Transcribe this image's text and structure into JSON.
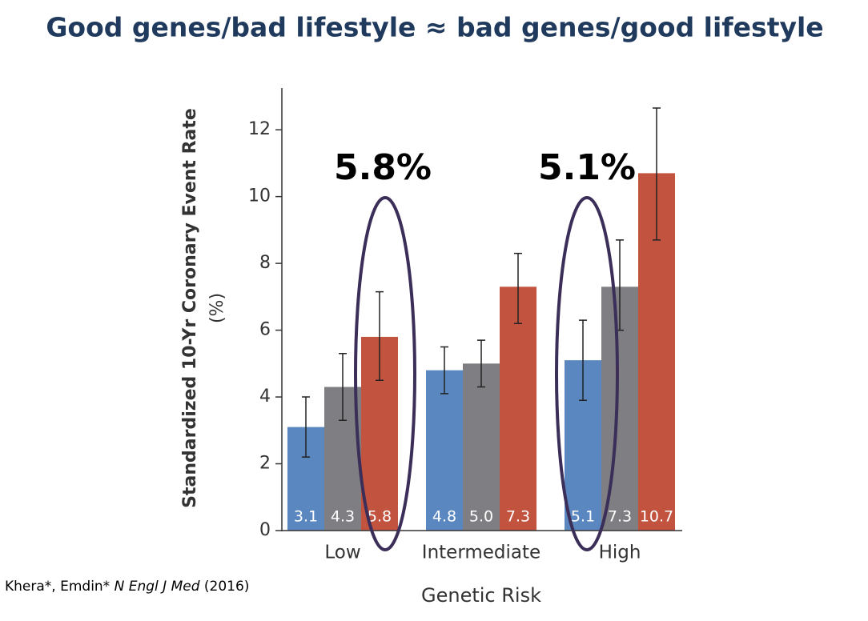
{
  "chart_data": {
    "type": "bar",
    "title": "Good genes/bad lifestyle ≈ bad genes/good lifestyle",
    "x_label": "Genetic Risk",
    "y_label": [
      "Standardized 10-Yr Coronary Event Rate",
      "(%)"
    ],
    "categories": [
      "Low",
      "Intermediate",
      "High"
    ],
    "series": [
      {
        "color": "#5b87c1",
        "values": [
          3.1,
          4.8,
          5.1
        ],
        "value_labels": [
          "3.1",
          "4.8",
          "5.1"
        ],
        "error_low": [
          2.2,
          4.1,
          3.9
        ],
        "error_high": [
          4.0,
          5.5,
          6.3
        ]
      },
      {
        "color": "#7f7f83",
        "values": [
          4.3,
          5.0,
          7.3
        ],
        "value_labels": [
          "4.3",
          "5.0",
          "7.3"
        ],
        "error_low": [
          3.3,
          4.3,
          6.0
        ],
        "error_high": [
          5.3,
          5.7,
          8.7
        ]
      },
      {
        "color": "#c2533f",
        "values": [
          5.8,
          7.3,
          10.7
        ],
        "value_labels": [
          "5.8",
          "7.3",
          "10.7"
        ],
        "error_low": [
          4.5,
          6.2,
          8.7
        ],
        "error_high": [
          7.15,
          8.3,
          12.65
        ]
      }
    ],
    "ylim": [
      0,
      13.25
    ],
    "yticks": [
      0,
      2,
      4,
      6,
      8,
      10,
      12
    ],
    "annotations": [
      "5.8%",
      "5.1%"
    ],
    "citation": {
      "authors": "Khera*, Emdin*",
      "journal": "N Engl J Med",
      "year": "(2016)"
    }
  }
}
